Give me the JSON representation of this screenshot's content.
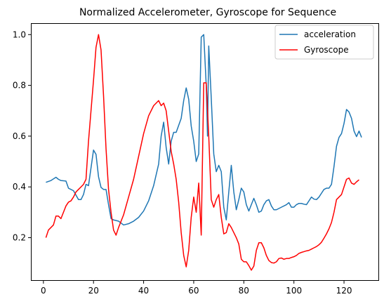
{
  "chart_data": {
    "type": "line",
    "title": "Normalized Accelerometer, Gyroscope for Sequence",
    "xlabel": "",
    "ylabel": "",
    "xlim": [
      -5,
      134
    ],
    "ylim": [
      0.03,
      1.045
    ],
    "xticks": [
      0,
      20,
      40,
      60,
      80,
      100,
      120
    ],
    "yticks": [
      0.2,
      0.4,
      0.6,
      0.8,
      1.0
    ],
    "ytick_labels": [
      "0.2",
      "0.4",
      "0.6",
      "0.8",
      "1.0"
    ],
    "grid": false,
    "legend": "top-right",
    "series": [
      {
        "name": "acceleration",
        "color": "#1f77b4",
        "points": [
          [
            1,
            0.418
          ],
          [
            3,
            0.425
          ],
          [
            5,
            0.438
          ],
          [
            6,
            0.43
          ],
          [
            7,
            0.425
          ],
          [
            9,
            0.423
          ],
          [
            10,
            0.395
          ],
          [
            12,
            0.385
          ],
          [
            14,
            0.35
          ],
          [
            15,
            0.35
          ],
          [
            16,
            0.37
          ],
          [
            17,
            0.41
          ],
          [
            18,
            0.405
          ],
          [
            19,
            0.475
          ],
          [
            20,
            0.545
          ],
          [
            21,
            0.528
          ],
          [
            22,
            0.44
          ],
          [
            23,
            0.398
          ],
          [
            24,
            0.39
          ],
          [
            25,
            0.39
          ],
          [
            26,
            0.33
          ],
          [
            27,
            0.275
          ],
          [
            28,
            0.27
          ],
          [
            30,
            0.265
          ],
          [
            32,
            0.25
          ],
          [
            34,
            0.255
          ],
          [
            36,
            0.265
          ],
          [
            38,
            0.28
          ],
          [
            40,
            0.305
          ],
          [
            42,
            0.345
          ],
          [
            44,
            0.405
          ],
          [
            46,
            0.49
          ],
          [
            47,
            0.6
          ],
          [
            48,
            0.655
          ],
          [
            49,
            0.555
          ],
          [
            50,
            0.49
          ],
          [
            51,
            0.58
          ],
          [
            52,
            0.615
          ],
          [
            53,
            0.615
          ],
          [
            55,
            0.67
          ],
          [
            56,
            0.74
          ],
          [
            57,
            0.79
          ],
          [
            58,
            0.745
          ],
          [
            59,
            0.64
          ],
          [
            60,
            0.58
          ],
          [
            61,
            0.5
          ],
          [
            62,
            0.53
          ],
          [
            63,
            0.99
          ],
          [
            64,
            1.0
          ],
          [
            65,
            0.8
          ],
          [
            65.5,
            0.6
          ],
          [
            66,
            0.955
          ],
          [
            67,
            0.75
          ],
          [
            68,
            0.53
          ],
          [
            69,
            0.46
          ],
          [
            70,
            0.485
          ],
          [
            71,
            0.46
          ],
          [
            72,
            0.32
          ],
          [
            73,
            0.27
          ],
          [
            74,
            0.38
          ],
          [
            75,
            0.485
          ],
          [
            76,
            0.38
          ],
          [
            77,
            0.31
          ],
          [
            78,
            0.35
          ],
          [
            79,
            0.395
          ],
          [
            80,
            0.38
          ],
          [
            81,
            0.33
          ],
          [
            82,
            0.305
          ],
          [
            83,
            0.33
          ],
          [
            84,
            0.355
          ],
          [
            85,
            0.33
          ],
          [
            86,
            0.3
          ],
          [
            87,
            0.305
          ],
          [
            88,
            0.33
          ],
          [
            89,
            0.345
          ],
          [
            90,
            0.35
          ],
          [
            91,
            0.325
          ],
          [
            92,
            0.31
          ],
          [
            93,
            0.31
          ],
          [
            95,
            0.32
          ],
          [
            97,
            0.33
          ],
          [
            98,
            0.338
          ],
          [
            99,
            0.32
          ],
          [
            100,
            0.32
          ],
          [
            101,
            0.33
          ],
          [
            102,
            0.335
          ],
          [
            103,
            0.335
          ],
          [
            104,
            0.332
          ],
          [
            105,
            0.33
          ],
          [
            106,
            0.345
          ],
          [
            107,
            0.36
          ],
          [
            108,
            0.352
          ],
          [
            109,
            0.35
          ],
          [
            110,
            0.36
          ],
          [
            111,
            0.375
          ],
          [
            112,
            0.39
          ],
          [
            113,
            0.395
          ],
          [
            114,
            0.395
          ],
          [
            115,
            0.41
          ],
          [
            116,
            0.48
          ],
          [
            117,
            0.56
          ],
          [
            118,
            0.595
          ],
          [
            119,
            0.61
          ],
          [
            120,
            0.65
          ],
          [
            121,
            0.705
          ],
          [
            122,
            0.695
          ],
          [
            123,
            0.67
          ],
          [
            124,
            0.62
          ],
          [
            125,
            0.598
          ],
          [
            126,
            0.62
          ],
          [
            127,
            0.595
          ]
        ]
      },
      {
        "name": "Gyroscope",
        "color": "#ff0000",
        "points": [
          [
            1,
            0.2
          ],
          [
            2,
            0.23
          ],
          [
            3,
            0.24
          ],
          [
            4,
            0.25
          ],
          [
            5,
            0.285
          ],
          [
            6,
            0.285
          ],
          [
            7,
            0.275
          ],
          [
            8,
            0.3
          ],
          [
            9,
            0.325
          ],
          [
            10,
            0.34
          ],
          [
            11,
            0.345
          ],
          [
            12,
            0.36
          ],
          [
            13,
            0.38
          ],
          [
            14,
            0.39
          ],
          [
            15,
            0.4
          ],
          [
            16,
            0.41
          ],
          [
            17,
            0.43
          ],
          [
            18,
            0.58
          ],
          [
            19,
            0.7
          ],
          [
            20,
            0.82
          ],
          [
            21,
            0.95
          ],
          [
            22,
            1.0
          ],
          [
            23,
            0.94
          ],
          [
            24,
            0.76
          ],
          [
            25,
            0.55
          ],
          [
            26,
            0.39
          ],
          [
            27,
            0.3
          ],
          [
            28,
            0.23
          ],
          [
            29,
            0.21
          ],
          [
            30,
            0.24
          ],
          [
            32,
            0.29
          ],
          [
            34,
            0.36
          ],
          [
            36,
            0.43
          ],
          [
            38,
            0.52
          ],
          [
            40,
            0.61
          ],
          [
            42,
            0.68
          ],
          [
            44,
            0.72
          ],
          [
            46,
            0.74
          ],
          [
            47,
            0.72
          ],
          [
            48,
            0.73
          ],
          [
            49,
            0.7
          ],
          [
            50,
            0.62
          ],
          [
            51,
            0.54
          ],
          [
            52,
            0.49
          ],
          [
            53,
            0.43
          ],
          [
            54,
            0.34
          ],
          [
            55,
            0.22
          ],
          [
            56,
            0.13
          ],
          [
            57,
            0.085
          ],
          [
            58,
            0.15
          ],
          [
            59,
            0.28
          ],
          [
            60,
            0.36
          ],
          [
            61,
            0.3
          ],
          [
            62,
            0.415
          ],
          [
            63,
            0.21
          ],
          [
            64,
            0.81
          ],
          [
            65,
            0.81
          ],
          [
            66,
            0.6
          ],
          [
            67,
            0.35
          ],
          [
            68,
            0.32
          ],
          [
            69,
            0.35
          ],
          [
            70,
            0.37
          ],
          [
            71,
            0.28
          ],
          [
            72,
            0.215
          ],
          [
            73,
            0.22
          ],
          [
            74,
            0.255
          ],
          [
            75,
            0.24
          ],
          [
            76,
            0.22
          ],
          [
            77,
            0.2
          ],
          [
            78,
            0.175
          ],
          [
            79,
            0.115
          ],
          [
            80,
            0.105
          ],
          [
            81,
            0.105
          ],
          [
            82,
            0.09
          ],
          [
            83,
            0.072
          ],
          [
            84,
            0.088
          ],
          [
            85,
            0.15
          ],
          [
            86,
            0.18
          ],
          [
            87,
            0.18
          ],
          [
            88,
            0.16
          ],
          [
            89,
            0.13
          ],
          [
            90,
            0.11
          ],
          [
            91,
            0.102
          ],
          [
            92,
            0.1
          ],
          [
            93,
            0.105
          ],
          [
            94,
            0.118
          ],
          [
            95,
            0.12
          ],
          [
            96,
            0.115
          ],
          [
            97,
            0.118
          ],
          [
            98,
            0.118
          ],
          [
            99,
            0.122
          ],
          [
            100,
            0.125
          ],
          [
            101,
            0.13
          ],
          [
            102,
            0.138
          ],
          [
            103,
            0.142
          ],
          [
            104,
            0.145
          ],
          [
            105,
            0.148
          ],
          [
            106,
            0.15
          ],
          [
            107,
            0.155
          ],
          [
            108,
            0.16
          ],
          [
            109,
            0.165
          ],
          [
            110,
            0.172
          ],
          [
            111,
            0.182
          ],
          [
            112,
            0.198
          ],
          [
            113,
            0.215
          ],
          [
            114,
            0.235
          ],
          [
            115,
            0.26
          ],
          [
            116,
            0.3
          ],
          [
            117,
            0.35
          ],
          [
            118,
            0.36
          ],
          [
            119,
            0.37
          ],
          [
            120,
            0.4
          ],
          [
            121,
            0.43
          ],
          [
            122,
            0.435
          ],
          [
            123,
            0.415
          ],
          [
            124,
            0.41
          ],
          [
            125,
            0.42
          ],
          [
            126,
            0.428
          ]
        ]
      }
    ]
  }
}
